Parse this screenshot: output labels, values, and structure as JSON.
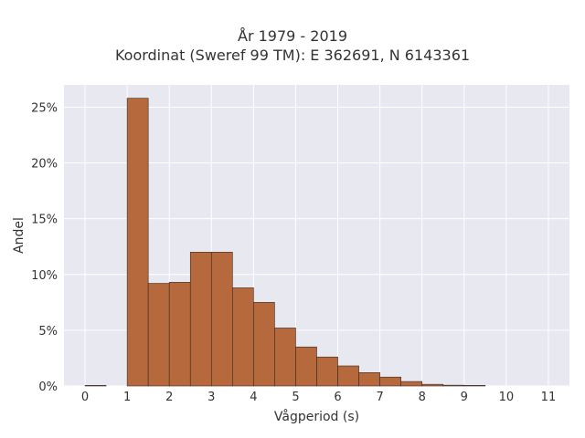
{
  "chart_data": {
    "type": "bar",
    "title": "År 1979 - 2019",
    "subtitle": "Koordinat (Sweref 99 TM): E 362691, N 6143361",
    "xlabel": "Vågperiod (s)",
    "ylabel": "Andel",
    "xlim": [
      -0.5,
      11.5
    ],
    "ylim": [
      0,
      0.27
    ],
    "x_ticks": [
      0,
      1,
      2,
      3,
      4,
      5,
      6,
      7,
      8,
      9,
      10,
      11
    ],
    "y_ticks": [
      0,
      0.05,
      0.1,
      0.15,
      0.2,
      0.25
    ],
    "y_tick_labels": [
      "0%",
      "5%",
      "10%",
      "15%",
      "20%",
      "25%"
    ],
    "bin_width": 0.5,
    "bins": [
      {
        "x0": 0.0,
        "x1": 0.5,
        "value": 0.0003
      },
      {
        "x0": 1.0,
        "x1": 1.5,
        "value": 0.258
      },
      {
        "x0": 1.5,
        "x1": 2.0,
        "value": 0.092
      },
      {
        "x0": 2.0,
        "x1": 2.5,
        "value": 0.093
      },
      {
        "x0": 2.5,
        "x1": 3.0,
        "value": 0.12
      },
      {
        "x0": 3.0,
        "x1": 3.5,
        "value": 0.12
      },
      {
        "x0": 3.5,
        "x1": 4.0,
        "value": 0.088
      },
      {
        "x0": 4.0,
        "x1": 4.5,
        "value": 0.075
      },
      {
        "x0": 4.5,
        "x1": 5.0,
        "value": 0.052
      },
      {
        "x0": 5.0,
        "x1": 5.5,
        "value": 0.035
      },
      {
        "x0": 5.5,
        "x1": 6.0,
        "value": 0.026
      },
      {
        "x0": 6.0,
        "x1": 6.5,
        "value": 0.018
      },
      {
        "x0": 6.5,
        "x1": 7.0,
        "value": 0.012
      },
      {
        "x0": 7.0,
        "x1": 7.5,
        "value": 0.008
      },
      {
        "x0": 7.5,
        "x1": 8.0,
        "value": 0.004
      },
      {
        "x0": 8.0,
        "x1": 8.5,
        "value": 0.0015
      },
      {
        "x0": 8.5,
        "x1": 9.0,
        "value": 0.0007
      },
      {
        "x0": 9.0,
        "x1": 9.5,
        "value": 0.0004
      }
    ],
    "grid": true,
    "colors": {
      "bar_fill": "#b5693c",
      "bar_stroke": "#3a2a20",
      "plot_bg": "#e8e8f1",
      "grid": "#ffffff"
    }
  }
}
